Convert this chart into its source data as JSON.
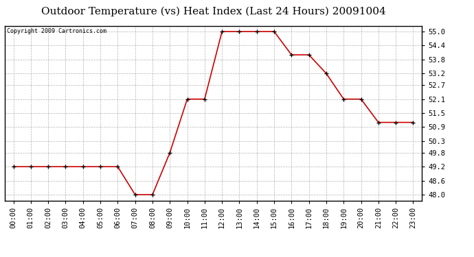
{
  "title": "Outdoor Temperature (vs) Heat Index (Last 24 Hours) 20091004",
  "copyright": "Copyright 2009 Cartronics.com",
  "x_labels": [
    "00:00",
    "01:00",
    "02:00",
    "03:00",
    "04:00",
    "05:00",
    "06:00",
    "07:00",
    "08:00",
    "09:00",
    "10:00",
    "11:00",
    "12:00",
    "13:00",
    "14:00",
    "15:00",
    "16:00",
    "17:00",
    "18:00",
    "19:00",
    "20:00",
    "21:00",
    "22:00",
    "23:00"
  ],
  "y_values": [
    49.2,
    49.2,
    49.2,
    49.2,
    49.2,
    49.2,
    49.2,
    48.0,
    48.0,
    49.8,
    52.1,
    52.1,
    55.0,
    55.0,
    55.0,
    55.0,
    54.0,
    54.0,
    53.2,
    52.1,
    52.1,
    51.1,
    51.1,
    51.1
  ],
  "y_ticks": [
    48.0,
    48.6,
    49.2,
    49.8,
    50.3,
    50.9,
    51.5,
    52.1,
    52.7,
    53.2,
    53.8,
    54.4,
    55.0
  ],
  "ylim": [
    47.75,
    55.25
  ],
  "line_color": "#cc0000",
  "marker": "+",
  "marker_size": 5,
  "marker_color": "#000000",
  "bg_color": "#ffffff",
  "grid_color": "#aaaaaa",
  "title_fontsize": 11,
  "copyright_fontsize": 6,
  "tick_fontsize": 7.5
}
